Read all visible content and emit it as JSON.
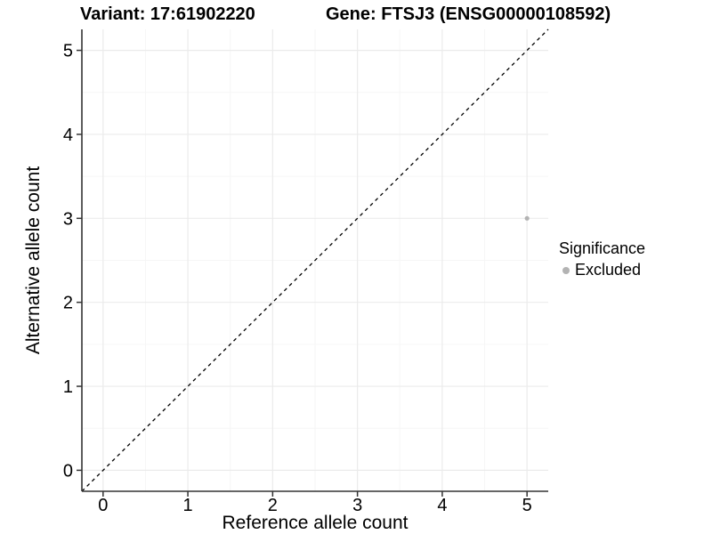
{
  "header": {
    "variant_title": "Variant: 17:61902220",
    "gene_title": "Gene: FTSJ3 (ENSG00000108592)"
  },
  "chart_data": {
    "type": "scatter",
    "title": "Variant: 17:61902220 | Gene: FTSJ3 (ENSG00000108592)",
    "xlabel": "Reference allele count",
    "ylabel": "Alternative allele count",
    "xlim": [
      -0.25,
      5.25
    ],
    "ylim": [
      -0.25,
      5.25
    ],
    "xticks": [
      0,
      1,
      2,
      3,
      4,
      5
    ],
    "yticks": [
      0,
      1,
      2,
      3,
      4,
      5
    ],
    "xticks_minor": [
      0.5,
      1.5,
      2.5,
      3.5,
      4.5
    ],
    "yticks_minor": [
      0.5,
      1.5,
      2.5,
      3.5,
      4.5
    ],
    "grid": "major and minor, light gray, on white panel",
    "reference_line": {
      "type": "identity y=x",
      "style": "dashed",
      "color": "#000000"
    },
    "series": [
      {
        "name": "Excluded",
        "color": "#b3b3b3",
        "points": [
          {
            "x": 5,
            "y": 3
          }
        ]
      }
    ],
    "legend": {
      "title": "Significance",
      "position": "right",
      "entries": [
        {
          "label": "Excluded",
          "color": "#b3b3b3"
        }
      ]
    }
  },
  "colors": {
    "background": "#ffffff",
    "grid_major": "#ebebeb",
    "grid_minor": "#f6f6f6",
    "axis_line": "#333333",
    "tick": "#333333",
    "text": "#000000",
    "point": "#b3b3b3",
    "dashed_line": "#000000"
  }
}
